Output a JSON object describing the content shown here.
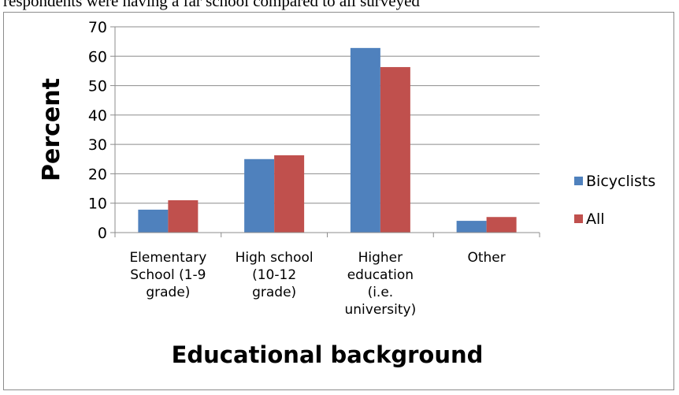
{
  "caption": "respondents were having a far school compared to all surveyed",
  "chart_data": {
    "type": "bar",
    "title": "",
    "xlabel": "Educational background",
    "ylabel": "Percent",
    "ylim": [
      0,
      70
    ],
    "yticks": [
      0,
      10,
      20,
      30,
      40,
      50,
      60,
      70
    ],
    "grid": true,
    "legend_position": "right",
    "categories": [
      [
        "Elementary",
        "School (1-9",
        "grade)"
      ],
      [
        "High school",
        "(10-12",
        "grade)"
      ],
      [
        "Higher",
        "education",
        "(i.e.",
        "university)"
      ],
      [
        "Other"
      ]
    ],
    "series": [
      {
        "name": "Bicyclists",
        "color": "#4f81bd",
        "values": [
          7.8,
          25,
          62.8,
          4
        ]
      },
      {
        "name": "All",
        "color": "#c0504d",
        "values": [
          11,
          26.3,
          56.3,
          5.3
        ]
      }
    ]
  }
}
